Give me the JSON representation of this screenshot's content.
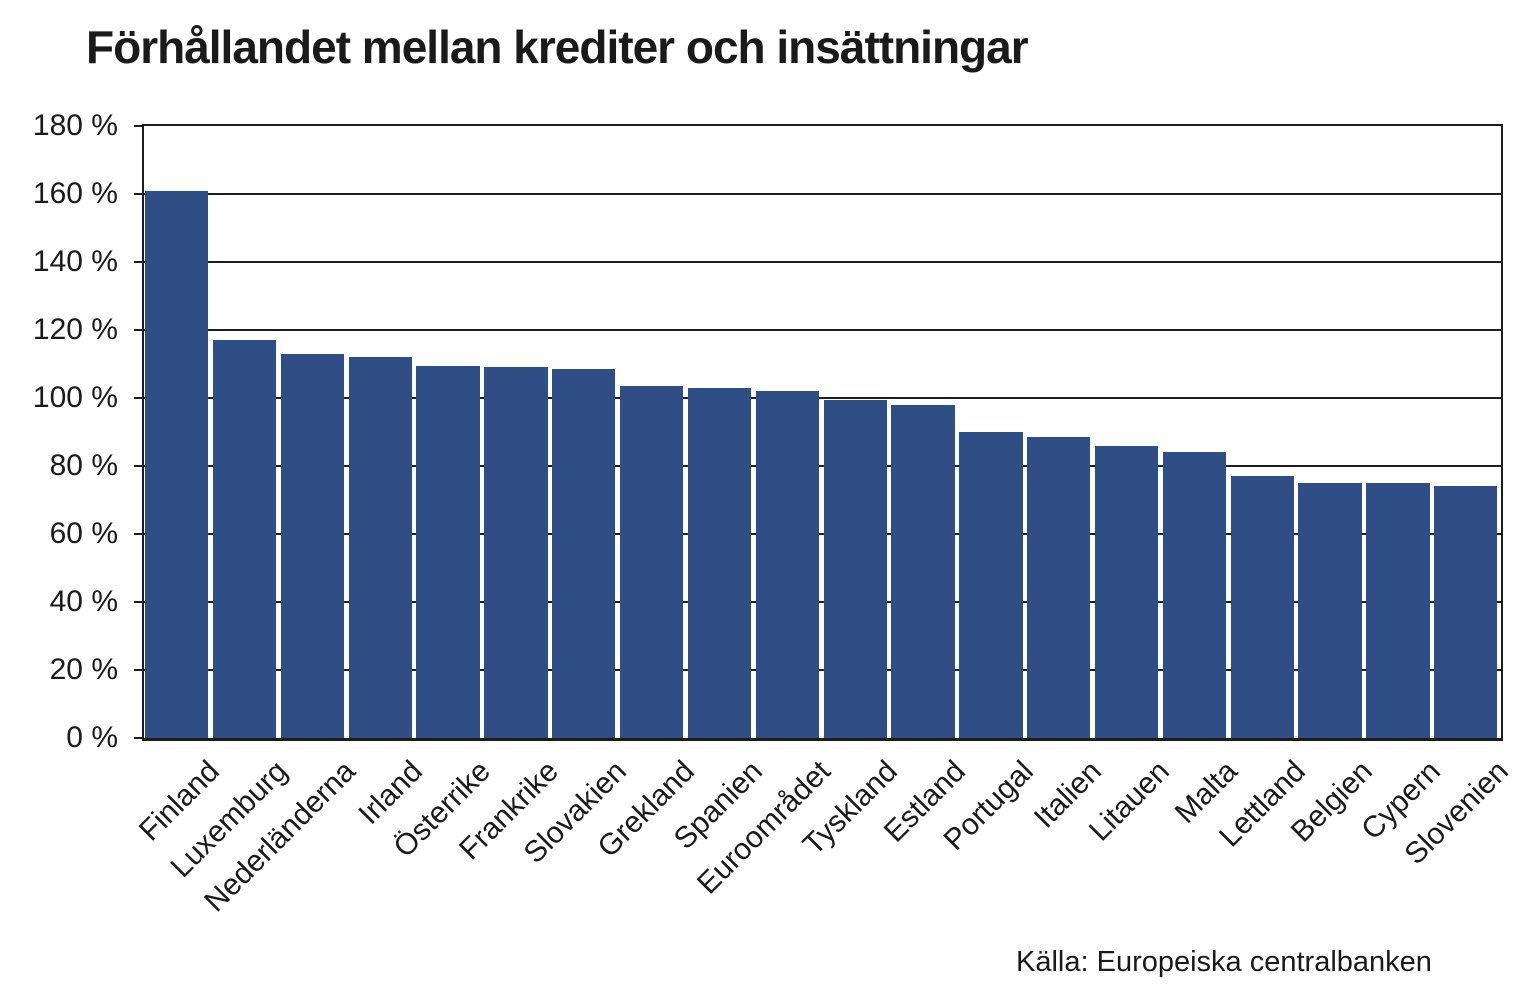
{
  "page": {
    "title": "Förhållandet mellan krediter och insättningar",
    "source": "Källa: Europeiska centralbanken"
  },
  "colors": {
    "bar": "#2F4E86",
    "axis": "#1c1c1c",
    "background": "#ffffff"
  },
  "chart_data": {
    "type": "bar",
    "title": "Förhållandet mellan krediter och insättningar",
    "categories": [
      "Finland",
      "Luxemburg",
      "Nederländerna",
      "Irland",
      "Österrike",
      "Frankrike",
      "Slovakien",
      "Grekland",
      "Spanien",
      "Euroområdet",
      "Tyskland",
      "Estland",
      "Portugal",
      "Italien",
      "Litauen",
      "Malta",
      "Lettland",
      "Belgien",
      "Cypern",
      "Slovenien"
    ],
    "values": [
      161,
      117,
      113,
      112,
      109.5,
      109,
      108.5,
      103.5,
      103,
      102,
      99.5,
      98,
      90,
      88.5,
      86,
      84,
      77,
      75,
      75,
      74
    ],
    "unit": "%",
    "xlabel": "",
    "ylabel": "",
    "ylim": [
      0,
      180
    ],
    "ytick_step": 20,
    "ytick_labels": [
      "0 %",
      "20 %",
      "40 %",
      "60 %",
      "80 %",
      "100 %",
      "120 %",
      "140 %",
      "160 %",
      "180 %"
    ],
    "grid": true,
    "legend": false,
    "source": "Källa: Europeiska centralbanken"
  }
}
